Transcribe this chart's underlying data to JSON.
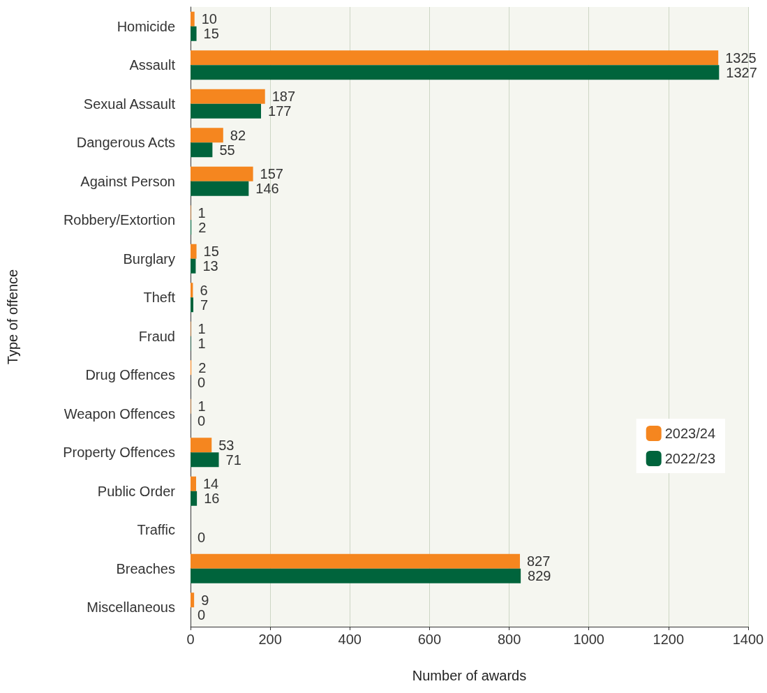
{
  "chart_data": {
    "type": "bar",
    "orientation": "horizontal",
    "xlabel": "Number of awards",
    "ylabel": "Type of offence",
    "categories": [
      "Homicide",
      "Assault",
      "Sexual Assault",
      "Dangerous Acts",
      "Against Person",
      "Robbery/Extortion",
      "Burglary",
      "Theft",
      "Fraud",
      "Drug Offences",
      "Weapon Offences",
      "Property Offences",
      "Public Order",
      "Traffic",
      "Breaches",
      "Miscellaneous"
    ],
    "series": [
      {
        "name": "2023/24",
        "color": "#f5861f",
        "values": [
          10,
          1325,
          187,
          82,
          157,
          1,
          15,
          6,
          1,
          2,
          1,
          53,
          14,
          null,
          827,
          9
        ]
      },
      {
        "name": "2022/23",
        "color": "#00643c",
        "values": [
          15,
          1327,
          177,
          55,
          146,
          2,
          13,
          7,
          1,
          0,
          0,
          71,
          16,
          0,
          829,
          0
        ]
      }
    ],
    "xlim": [
      0,
      1400
    ],
    "xticks": [
      0,
      200,
      400,
      600,
      800,
      1000,
      1200,
      1400
    ],
    "grid": "x",
    "legend": "right",
    "data_labels": true
  }
}
